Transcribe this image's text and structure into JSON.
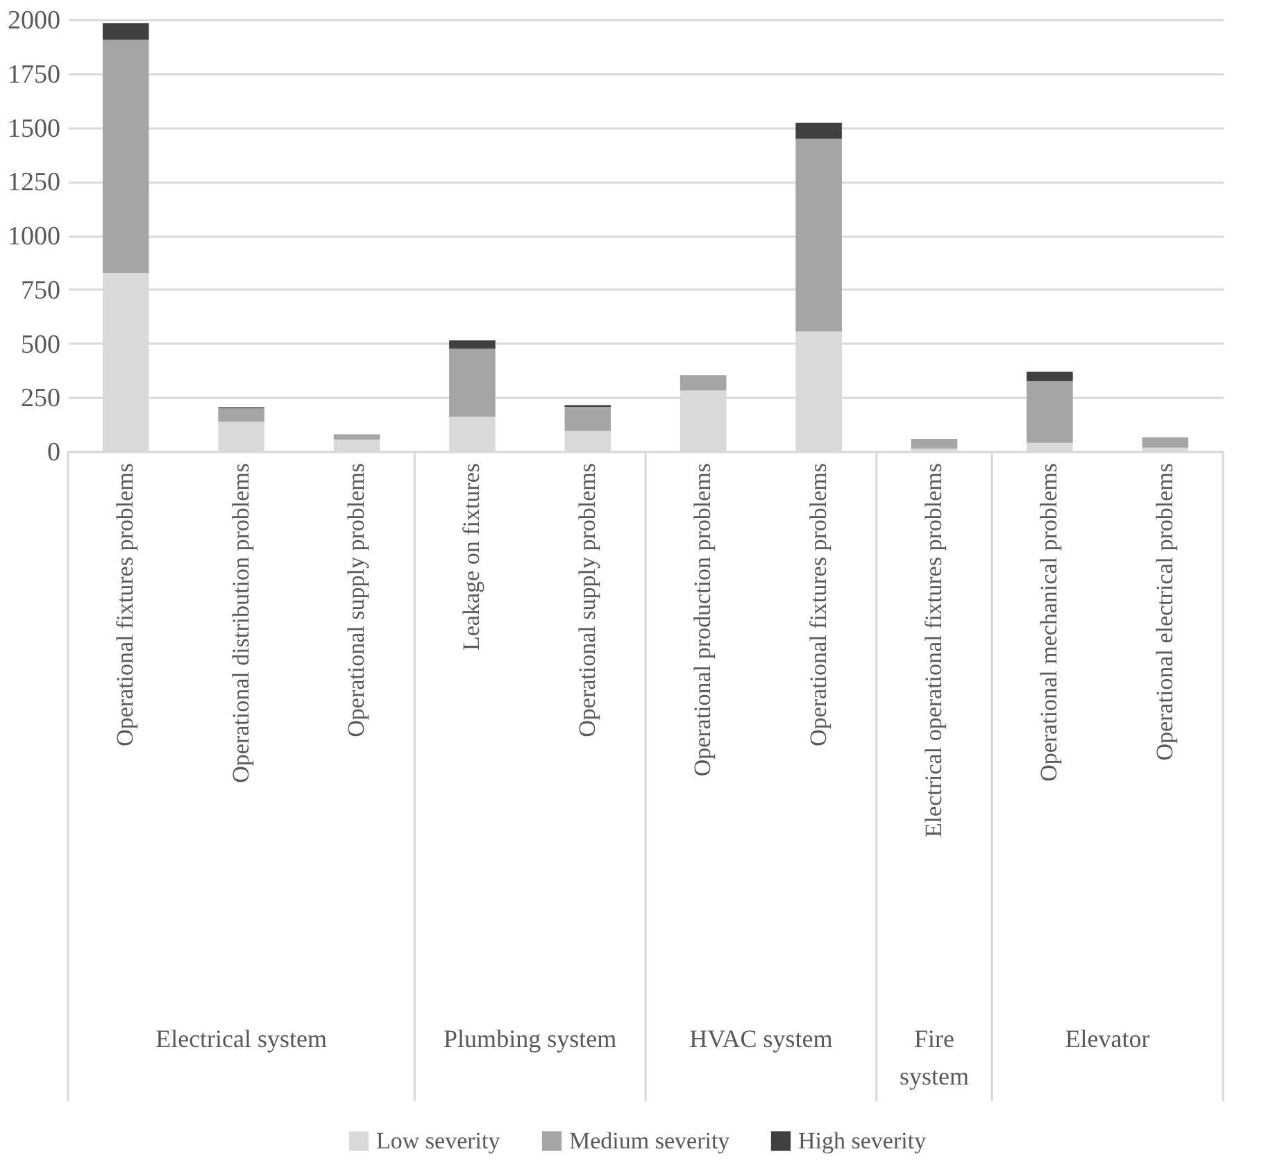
{
  "chart_data": {
    "type": "bar",
    "stacked": true,
    "categories": [
      "Operational fixtures problems",
      "Operational distribution problems",
      "Operational supply problems",
      "Leakage on fixtures",
      "Operational supply problems",
      "Operational production problems",
      "Operational fixtures problems",
      "Electrical operational fixtures problems",
      "Operational mechanical problems",
      "Operational electrical problems"
    ],
    "series": [
      {
        "name": "Low severity",
        "color": "#d9d9d9",
        "values": [
          826,
          137,
          54,
          161,
          94,
          281,
          555,
          13,
          39,
          17
        ]
      },
      {
        "name": "Medium severity",
        "color": "#a5a5a5",
        "values": [
          1080,
          62,
          25,
          314,
          112,
          72,
          893,
          45,
          286,
          47
        ]
      },
      {
        "name": "High severity",
        "color": "#404040",
        "values": [
          77,
          5,
          0,
          39,
          8,
          0,
          74,
          0,
          43,
          0
        ]
      }
    ],
    "annotations": [
      "Electrical system",
      "Plumbing system",
      "HVAC system",
      "Fire system",
      "Elevator"
    ],
    "ylim": [
      0,
      2000
    ],
    "yticks": [
      0,
      250,
      500,
      750,
      {
        "value": 1000,
        "label": "1000"
      },
      {
        "value": 1250,
        "label": "1250"
      },
      {
        "value": 1500,
        "label": "1500"
      },
      {
        "value": 1750,
        "label": "1750"
      },
      {
        "value": 2000,
        "label": "2000"
      }
    ],
    "grid": "y",
    "legend": "bottom"
  }
}
